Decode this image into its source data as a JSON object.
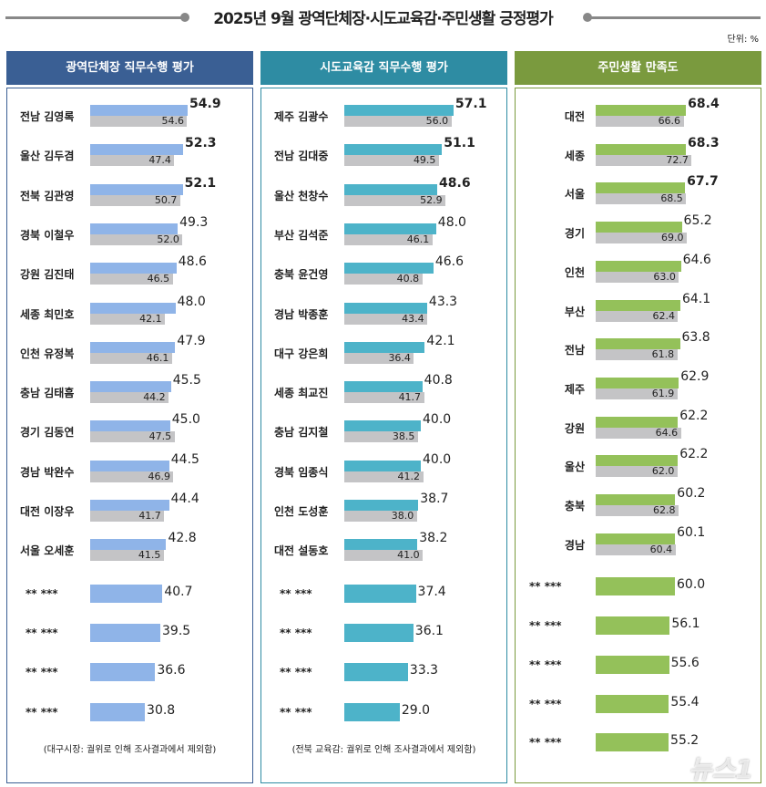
{
  "title": "2025년 9월 광역단체장·시도교육감·주민생활 긍정평가",
  "unit": "단위: %",
  "watermark": "뉴스1",
  "chart_data": [
    {
      "type": "bar",
      "title": "광역단체장 직무수행 평가",
      "color": "#8fb4e8",
      "header_color": "#3a5f94",
      "border_color": "#3a5f94",
      "note": "(대구시장: 궐위로 인해  조사결과에서 제외함)",
      "categories": [
        "전남 김영록",
        "울산 김두겸",
        "전북 김관영",
        "경북 이철우",
        "강원 김진태",
        "세종 최민호",
        "인천 유정복",
        "충남 김태흠",
        "경기 김동연",
        "경남 박완수",
        "대전 이장우",
        "서울 오세훈",
        "**  ***",
        "**  ***",
        "**  ***",
        "**  ***"
      ],
      "series": [
        {
          "values": [
            54.9,
            52.3,
            52.1,
            49.3,
            48.6,
            48.0,
            47.9,
            45.5,
            45.0,
            44.5,
            44.4,
            42.8,
            40.7,
            39.5,
            36.6,
            30.8
          ]
        },
        {
          "values": [
            54.6,
            47.4,
            50.7,
            52.0,
            46.5,
            42.1,
            46.1,
            44.2,
            47.5,
            46.9,
            41.7,
            41.5,
            null,
            null,
            null,
            null
          ]
        }
      ]
    },
    {
      "type": "bar",
      "title": "시도교육감 직무수행 평가",
      "color": "#4db3c9",
      "header_color": "#2e8ca3",
      "border_color": "#2e8ca3",
      "note": "(전북 교육감: 궐위로 인해  조사결과에서 제외함)",
      "categories": [
        "제주 김광수",
        "전남 김대중",
        "울산 천창수",
        "부산 김석준",
        "충북 윤건영",
        "경남 박종훈",
        "대구 강은희",
        "세종 최교진",
        "충남 김지철",
        "경북 임종식",
        "인천 도성훈",
        "대전 설동호",
        "**  ***",
        "**  ***",
        "**  ***",
        "**  ***"
      ],
      "series": [
        {
          "values": [
            57.1,
            51.1,
            48.6,
            48.0,
            46.6,
            43.3,
            42.1,
            40.8,
            40.0,
            40.0,
            38.7,
            38.2,
            37.4,
            36.1,
            33.3,
            29.0
          ]
        },
        {
          "values": [
            56.0,
            49.5,
            52.9,
            46.1,
            40.8,
            43.4,
            36.4,
            41.7,
            38.5,
            41.2,
            38.0,
            41.0,
            null,
            null,
            null,
            null
          ]
        }
      ]
    },
    {
      "type": "bar",
      "title": "주민생활 만족도",
      "color": "#94c15a",
      "header_color": "#7a9a3e",
      "border_color": "#7a9a3e",
      "note": "",
      "categories": [
        "대전",
        "세종",
        "서울",
        "경기",
        "인천",
        "부산",
        "전남",
        "제주",
        "강원",
        "울산",
        "충북",
        "경남",
        "**  ***",
        "**  ***",
        "**  ***",
        "**  ***",
        "**  ***"
      ],
      "series": [
        {
          "values": [
            68.4,
            68.3,
            67.7,
            65.2,
            64.6,
            64.1,
            63.8,
            62.9,
            62.2,
            62.2,
            60.2,
            60.1,
            60.0,
            56.1,
            55.6,
            55.4,
            55.2
          ]
        },
        {
          "values": [
            66.6,
            72.7,
            68.5,
            69.0,
            63.0,
            62.4,
            61.8,
            61.9,
            64.6,
            62.0,
            62.8,
            60.4,
            null,
            null,
            null,
            null,
            null
          ]
        }
      ]
    }
  ]
}
